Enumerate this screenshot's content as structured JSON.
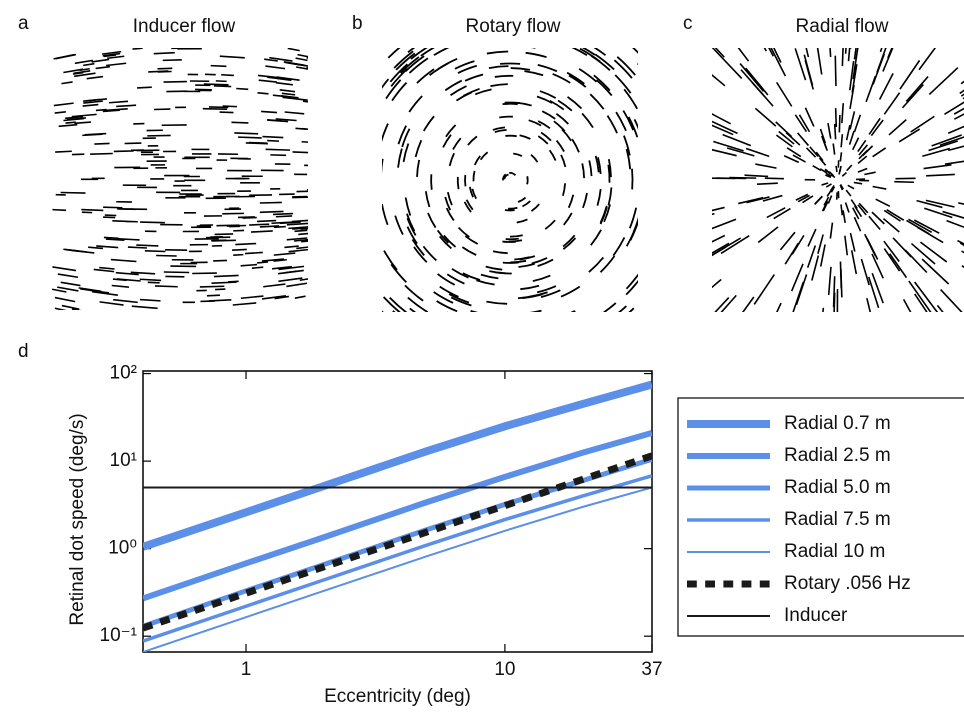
{
  "panels": [
    {
      "letter": "a",
      "title": "Inducer flow",
      "pattern": "inducer"
    },
    {
      "letter": "b",
      "title": "Rotary flow",
      "pattern": "rotary"
    },
    {
      "letter": "c",
      "title": "Radial flow",
      "pattern": "radial"
    }
  ],
  "chart_data": {
    "type": "line",
    "panel_label": "d",
    "xlabel": "Eccentricity (deg)",
    "ylabel": "Retinal dot speed (deg/s)",
    "xscale": "log",
    "yscale": "log",
    "xlim": [
      0.4,
      37
    ],
    "ylim": [
      0.066,
      107
    ],
    "xticks": [
      1,
      10,
      37
    ],
    "yticks": [
      {
        "value": 0.1,
        "label": "10⁻¹"
      },
      {
        "value": 1,
        "label": "10⁰"
      },
      {
        "value": 10,
        "label": "10¹"
      },
      {
        "value": 100,
        "label": "10²"
      }
    ],
    "x": [
      0.4,
      1,
      2,
      5,
      10,
      20,
      37
    ],
    "series": [
      {
        "name": "Radial 0.7 m",
        "color": "#5b8fe8",
        "linewidth": 8,
        "linestyle": "solid",
        "values": [
          1.05,
          2.6,
          5.2,
          13,
          25,
          45,
          75
        ]
      },
      {
        "name": "Radial 2.5 m",
        "color": "#5b8fe8",
        "linewidth": 6,
        "linestyle": "solid",
        "values": [
          0.27,
          0.68,
          1.35,
          3.4,
          6.6,
          12.5,
          21
        ]
      },
      {
        "name": "Radial 5.0 m",
        "color": "#5b8fe8",
        "linewidth": 5,
        "linestyle": "solid",
        "values": [
          0.13,
          0.33,
          0.66,
          1.65,
          3.2,
          6,
          10.5
        ]
      },
      {
        "name": "Radial 7.5 m",
        "color": "#5b8fe8",
        "linewidth": 3.5,
        "linestyle": "solid",
        "values": [
          0.088,
          0.22,
          0.44,
          1.1,
          2.15,
          4,
          6.8
        ]
      },
      {
        "name": "Radial 10 m",
        "color": "#5b8fe8",
        "linewidth": 2,
        "linestyle": "solid",
        "values": [
          0.066,
          0.165,
          0.33,
          0.82,
          1.6,
          3,
          5
        ]
      },
      {
        "name": "Rotary .056 Hz",
        "color": "#1a1a1a",
        "linewidth": 7,
        "linestyle": "dashed",
        "values": [
          0.124,
          0.31,
          0.62,
          1.55,
          3.1,
          6.2,
          11.5
        ]
      },
      {
        "name": "Inducer",
        "color": "#1a1a1a",
        "linewidth": 2,
        "linestyle": "solid",
        "values": [
          5,
          5,
          5,
          5,
          5,
          5,
          5
        ]
      }
    ],
    "legend": "right"
  }
}
